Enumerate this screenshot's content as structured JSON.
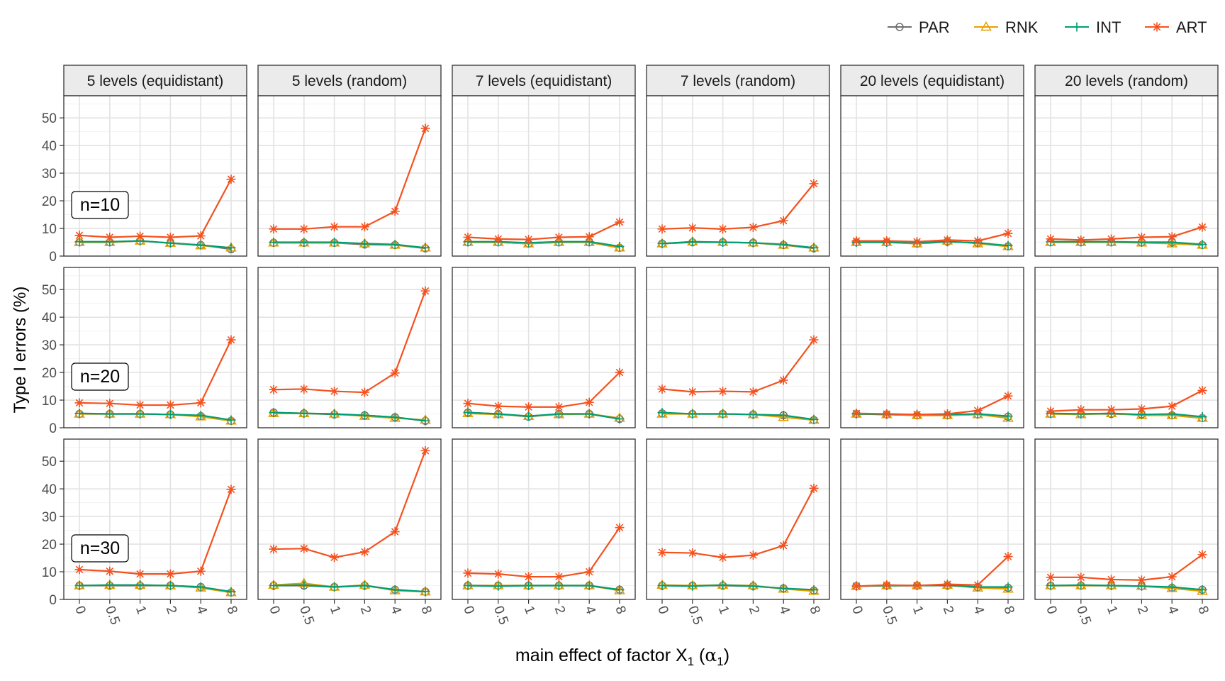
{
  "chart_data": {
    "type": "line",
    "xlabel_main": "main effect of factor X",
    "xlabel_sub": "1",
    "xlabel_paren_open": " (",
    "xlabel_alpha": "α",
    "xlabel_paren_close": ")",
    "ylabel": "Type I errors (%)",
    "ylim": [
      0,
      58
    ],
    "yticks": [
      "0",
      "10",
      "20",
      "30",
      "40",
      "50"
    ],
    "x": [
      "0",
      "0.5",
      "1",
      "2",
      "4",
      "8"
    ],
    "grid": true,
    "legend_position": "top-right",
    "legend": [
      {
        "name": "PAR",
        "color": "#6e6e6e",
        "marker": "circle"
      },
      {
        "name": "RNK",
        "color": "#e69f00",
        "marker": "triangle"
      },
      {
        "name": "INT",
        "color": "#009e73",
        "marker": "plus"
      },
      {
        "name": "ART",
        "color": "#f4511e",
        "marker": "asterisk"
      }
    ],
    "columns": [
      "5 levels (equidistant)",
      "5 levels (random)",
      "7 levels (equidistant)",
      "7 levels (random)",
      "20 levels (equidistant)",
      "20 levels (random)"
    ],
    "rows": [
      "n=10",
      "n=20",
      "n=30"
    ],
    "panels": [
      [
        {
          "PAR": [
            5.0,
            5.0,
            5.5,
            4.7,
            4.0,
            2.5
          ],
          "RNK": [
            5.0,
            5.0,
            5.5,
            4.7,
            3.8,
            3.0
          ],
          "INT": [
            5.2,
            5.2,
            5.5,
            4.7,
            4.0,
            3.0
          ],
          "ART": [
            7.5,
            6.8,
            7.2,
            6.8,
            7.3,
            27.8
          ]
        },
        {
          "PAR": [
            4.8,
            4.8,
            4.8,
            4.2,
            4.0,
            2.8
          ],
          "RNK": [
            4.8,
            4.8,
            4.8,
            4.5,
            4.0,
            3.0
          ],
          "INT": [
            5.0,
            5.0,
            5.0,
            4.5,
            4.2,
            3.0
          ],
          "ART": [
            9.8,
            9.8,
            10.6,
            10.6,
            16.2,
            46.2
          ]
        },
        {
          "PAR": [
            5.0,
            5.0,
            4.5,
            5.0,
            5.0,
            3.0
          ],
          "RNK": [
            5.0,
            5.0,
            4.5,
            5.0,
            5.0,
            3.0
          ],
          "INT": [
            5.2,
            5.2,
            4.8,
            5.2,
            5.2,
            3.5
          ],
          "ART": [
            6.8,
            6.2,
            6.0,
            6.8,
            7.0,
            12.3
          ]
        },
        {
          "PAR": [
            4.5,
            5.0,
            5.0,
            4.8,
            4.0,
            2.8
          ],
          "RNK": [
            4.5,
            5.2,
            5.0,
            4.8,
            4.0,
            3.0
          ],
          "INT": [
            4.5,
            5.2,
            5.0,
            4.8,
            4.2,
            3.0
          ],
          "ART": [
            9.8,
            10.2,
            9.8,
            10.4,
            12.8,
            26.2
          ]
        },
        {
          "PAR": [
            5.0,
            5.0,
            4.5,
            5.2,
            4.8,
            3.5
          ],
          "RNK": [
            5.0,
            5.0,
            4.5,
            5.5,
            4.5,
            3.5
          ],
          "INT": [
            5.0,
            5.0,
            4.8,
            5.2,
            4.8,
            3.8
          ],
          "ART": [
            5.5,
            5.5,
            5.2,
            5.8,
            5.5,
            8.2
          ]
        },
        {
          "PAR": [
            5.0,
            5.0,
            5.0,
            5.0,
            5.0,
            4.0
          ],
          "RNK": [
            5.0,
            5.0,
            5.0,
            4.8,
            4.5,
            4.0
          ],
          "INT": [
            5.2,
            5.2,
            5.2,
            5.0,
            5.0,
            4.2
          ],
          "ART": [
            6.2,
            5.8,
            6.2,
            6.8,
            7.0,
            10.5
          ]
        }
      ],
      [
        {
          "PAR": [
            5.0,
            5.0,
            5.0,
            4.8,
            4.2,
            2.5
          ],
          "RNK": [
            5.0,
            5.0,
            5.0,
            4.8,
            4.0,
            2.5
          ],
          "INT": [
            5.2,
            5.0,
            5.0,
            4.8,
            4.5,
            2.8
          ],
          "ART": [
            9.0,
            8.8,
            8.2,
            8.2,
            9.0,
            31.8
          ]
        },
        {
          "PAR": [
            5.5,
            5.2,
            4.8,
            4.5,
            3.8,
            2.5
          ],
          "RNK": [
            5.2,
            5.2,
            5.0,
            4.2,
            3.5,
            2.8
          ],
          "INT": [
            5.5,
            5.2,
            5.0,
            4.5,
            3.8,
            2.5
          ],
          "ART": [
            13.8,
            14.0,
            13.2,
            12.8,
            19.8,
            49.5
          ]
        },
        {
          "PAR": [
            5.5,
            5.0,
            4.0,
            5.0,
            5.0,
            3.2
          ],
          "RNK": [
            5.2,
            4.8,
            4.2,
            4.8,
            5.0,
            3.5
          ],
          "INT": [
            5.5,
            5.0,
            4.2,
            5.0,
            5.0,
            3.2
          ],
          "ART": [
            8.8,
            7.8,
            7.5,
            7.5,
            9.2,
            20.0
          ]
        },
        {
          "PAR": [
            5.2,
            5.0,
            5.0,
            4.8,
            4.5,
            2.8
          ],
          "RNK": [
            5.0,
            5.0,
            5.0,
            4.8,
            3.8,
            2.8
          ],
          "INT": [
            5.5,
            5.0,
            5.0,
            4.8,
            4.5,
            3.0
          ],
          "ART": [
            14.0,
            13.0,
            13.2,
            13.0,
            17.2,
            31.8
          ]
        },
        {
          "PAR": [
            5.0,
            4.8,
            4.5,
            4.5,
            4.8,
            4.0
          ],
          "RNK": [
            5.0,
            4.8,
            4.5,
            4.5,
            4.8,
            3.5
          ],
          "INT": [
            5.0,
            4.8,
            4.8,
            4.8,
            5.0,
            4.2
          ],
          "ART": [
            5.2,
            5.0,
            4.8,
            5.0,
            6.2,
            11.5
          ]
        },
        {
          "PAR": [
            5.0,
            5.0,
            5.0,
            4.8,
            4.5,
            3.5
          ],
          "RNK": [
            5.0,
            4.8,
            5.2,
            4.5,
            4.5,
            3.5
          ],
          "INT": [
            5.2,
            5.0,
            5.2,
            4.8,
            5.0,
            4.0
          ],
          "ART": [
            6.0,
            6.5,
            6.5,
            6.8,
            7.8,
            13.5
          ]
        }
      ],
      [
        {
          "PAR": [
            5.0,
            5.0,
            5.0,
            5.0,
            4.5,
            2.5
          ],
          "RNK": [
            5.0,
            5.2,
            5.2,
            5.0,
            4.2,
            2.5
          ],
          "INT": [
            5.0,
            5.2,
            5.2,
            5.0,
            4.5,
            2.8
          ],
          "ART": [
            10.8,
            10.2,
            9.2,
            9.2,
            10.2,
            39.8
          ]
        },
        {
          "PAR": [
            5.0,
            5.0,
            4.5,
            5.0,
            3.5,
            2.8
          ],
          "RNK": [
            5.2,
            5.8,
            4.5,
            5.2,
            3.2,
            2.8
          ],
          "INT": [
            5.0,
            5.2,
            4.5,
            5.0,
            3.5,
            2.8
          ],
          "ART": [
            18.2,
            18.4,
            15.2,
            17.2,
            24.5,
            53.8
          ]
        },
        {
          "PAR": [
            5.0,
            5.0,
            5.0,
            5.0,
            5.0,
            3.5
          ],
          "RNK": [
            5.0,
            5.0,
            5.0,
            5.0,
            5.0,
            3.2
          ],
          "INT": [
            5.0,
            4.8,
            5.0,
            5.0,
            5.0,
            3.5
          ],
          "ART": [
            9.5,
            9.2,
            8.2,
            8.2,
            10.0,
            26.0
          ]
        },
        {
          "PAR": [
            5.0,
            5.0,
            5.0,
            4.8,
            4.0,
            3.2
          ],
          "RNK": [
            5.2,
            5.0,
            5.2,
            5.0,
            3.8,
            3.0
          ],
          "INT": [
            5.0,
            4.8,
            5.2,
            4.8,
            4.0,
            3.5
          ],
          "ART": [
            17.0,
            16.8,
            15.2,
            16.0,
            19.5,
            40.2
          ]
        },
        {
          "PAR": [
            4.8,
            5.0,
            5.0,
            5.0,
            4.5,
            4.2
          ],
          "RNK": [
            4.8,
            5.0,
            5.0,
            5.2,
            4.2,
            3.8
          ],
          "INT": [
            4.8,
            5.0,
            5.0,
            5.2,
            4.5,
            4.5
          ],
          "ART": [
            4.8,
            5.2,
            5.0,
            5.5,
            5.2,
            15.5
          ]
        },
        {
          "PAR": [
            5.0,
            5.0,
            5.0,
            4.8,
            4.2,
            3.5
          ],
          "RNK": [
            5.0,
            5.0,
            5.0,
            4.8,
            4.0,
            3.0
          ],
          "INT": [
            5.0,
            5.2,
            5.0,
            4.8,
            4.5,
            3.5
          ],
          "ART": [
            8.0,
            8.0,
            7.2,
            7.0,
            8.2,
            16.2
          ]
        }
      ]
    ]
  }
}
